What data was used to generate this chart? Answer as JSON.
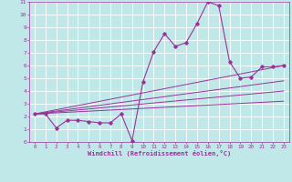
{
  "xlabel": "Windchill (Refroidissement éolien,°C)",
  "xlim": [
    -0.5,
    23.5
  ],
  "ylim": [
    0,
    11
  ],
  "xticks": [
    0,
    1,
    2,
    3,
    4,
    5,
    6,
    7,
    8,
    9,
    10,
    11,
    12,
    13,
    14,
    15,
    16,
    17,
    18,
    19,
    20,
    21,
    22,
    23
  ],
  "yticks": [
    0,
    1,
    2,
    3,
    4,
    5,
    6,
    7,
    8,
    9,
    10,
    11
  ],
  "bg_color": "#c0e8e8",
  "line_color": "#993399",
  "grid_color": "#ffffff",
  "main_line_x": [
    0,
    1,
    2,
    3,
    4,
    5,
    6,
    7,
    8,
    9,
    10,
    11,
    12,
    13,
    14,
    15,
    16,
    17,
    18,
    19,
    20,
    21,
    22,
    23
  ],
  "main_line_y": [
    2.2,
    2.2,
    1.1,
    1.7,
    1.7,
    1.6,
    1.5,
    1.5,
    2.2,
    0.1,
    4.7,
    7.1,
    8.5,
    7.5,
    7.8,
    9.3,
    11.0,
    10.7,
    6.3,
    5.0,
    5.1,
    5.9,
    5.9,
    6.0
  ],
  "trend_lines": [
    {
      "x": [
        0,
        23
      ],
      "y": [
        2.2,
        3.2
      ]
    },
    {
      "x": [
        0,
        23
      ],
      "y": [
        2.2,
        4.0
      ]
    },
    {
      "x": [
        0,
        23
      ],
      "y": [
        2.2,
        4.8
      ]
    },
    {
      "x": [
        0,
        23
      ],
      "y": [
        2.2,
        6.0
      ]
    }
  ]
}
